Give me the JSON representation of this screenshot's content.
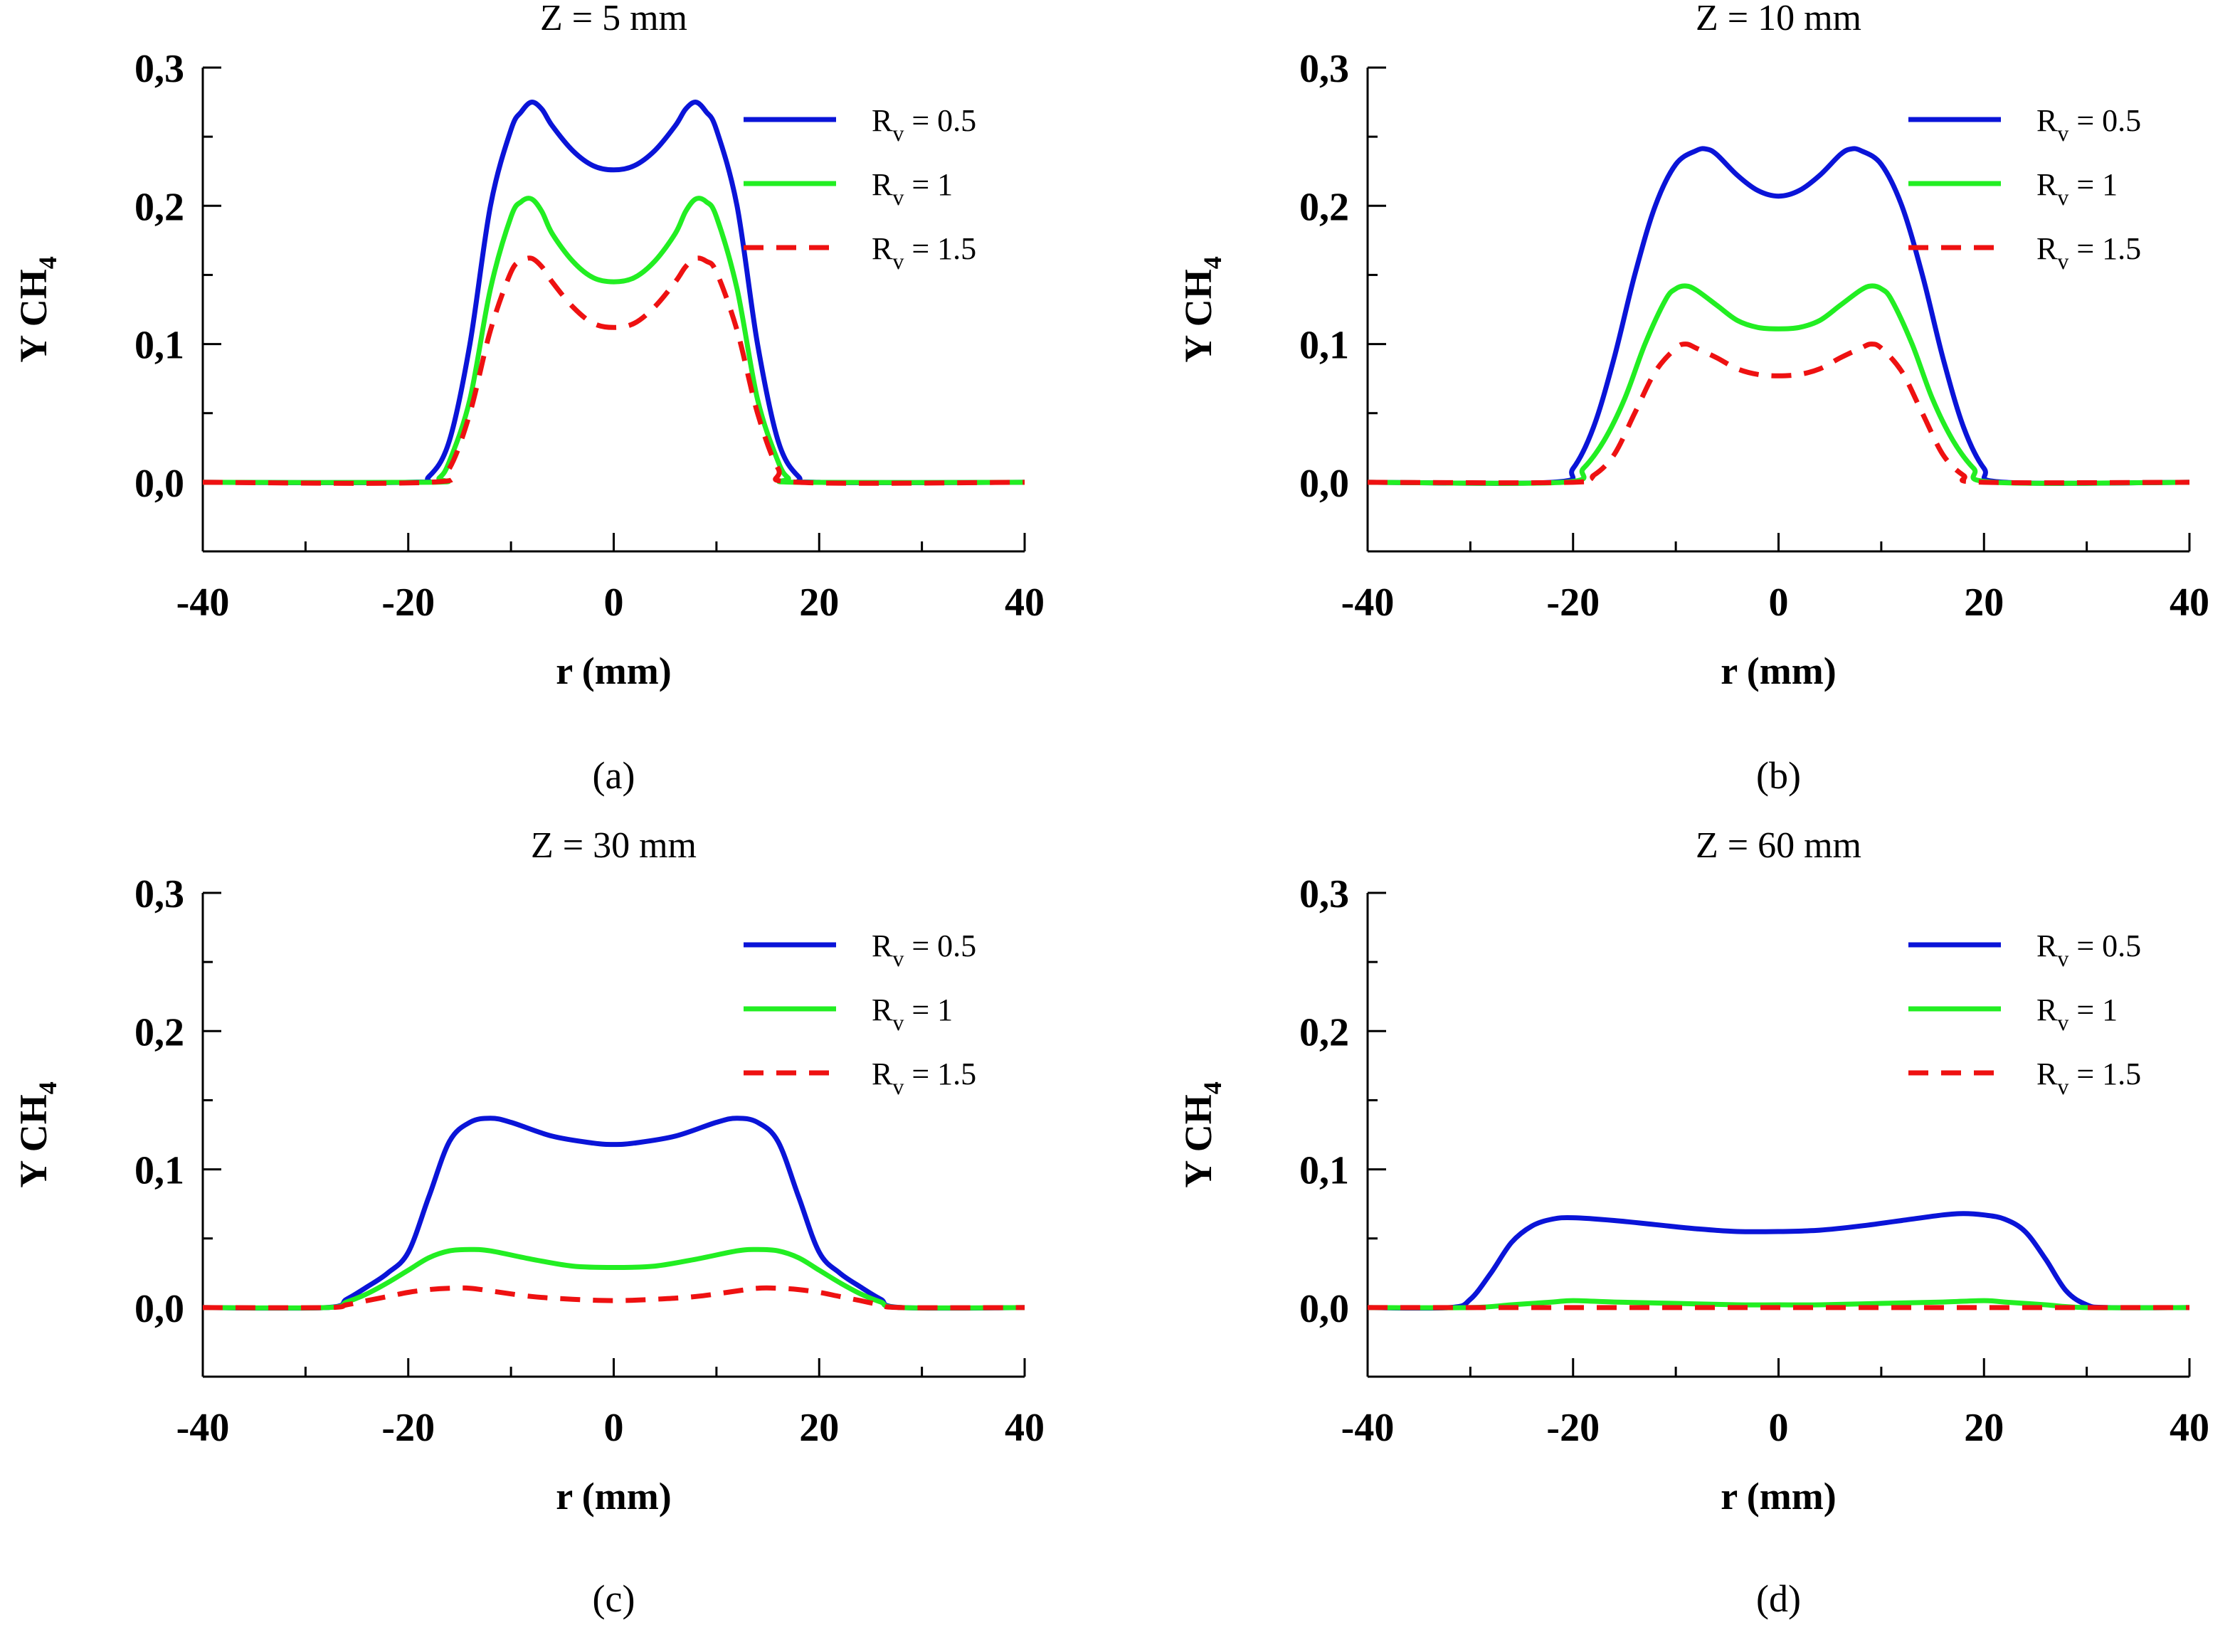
{
  "chart_data": [
    {
      "type": "line",
      "panel_label": "(a)",
      "title": "Z = 5 mm",
      "xlabel": "r (mm)",
      "ylabel": "Y CH",
      "ylabel_sub": "4",
      "xlim": [
        -40,
        40
      ],
      "ylim": [
        -0.05,
        0.3
      ],
      "xticks": [
        "-40",
        "-20",
        "0",
        "20",
        "40"
      ],
      "yticks": [
        "0,0",
        "0,1",
        "0,2",
        "0,3"
      ],
      "legend_position": "top-right",
      "series": [
        {
          "name": "Rv = 0.5",
          "name_main": "R",
          "name_sub": "v",
          "name_rest": " = 0.5",
          "color": "#0a14d8",
          "dash": "solid",
          "x": [
            -40,
            -20,
            -18,
            -16,
            -14,
            -12,
            -10,
            -9,
            -8,
            -7,
            -6,
            -4,
            -2,
            0,
            2,
            4,
            6,
            7,
            8,
            9,
            10,
            12,
            14,
            16,
            18,
            20,
            40
          ],
          "y": [
            0,
            0,
            0.004,
            0.03,
            0.1,
            0.2,
            0.255,
            0.268,
            0.275,
            0.27,
            0.258,
            0.24,
            0.229,
            0.226,
            0.229,
            0.24,
            0.258,
            0.27,
            0.275,
            0.268,
            0.255,
            0.2,
            0.1,
            0.03,
            0.004,
            0,
            0
          ]
        },
        {
          "name": "Rv = 1",
          "name_main": "R",
          "name_sub": "v",
          "name_rest": " = 1",
          "color": "#22ee22",
          "dash": "solid",
          "x": [
            -40,
            -18,
            -17,
            -16,
            -14,
            -12,
            -10,
            -9,
            -8,
            -7,
            -6,
            -4,
            -2,
            0,
            2,
            4,
            6,
            7,
            8,
            9,
            10,
            12,
            14,
            16,
            17,
            18,
            40
          ],
          "y": [
            0,
            0,
            0.003,
            0.015,
            0.06,
            0.14,
            0.192,
            0.203,
            0.205,
            0.196,
            0.18,
            0.16,
            0.148,
            0.145,
            0.148,
            0.16,
            0.18,
            0.196,
            0.205,
            0.203,
            0.192,
            0.14,
            0.06,
            0.015,
            0.003,
            0,
            0
          ]
        },
        {
          "name": "Rv = 1.5",
          "name_main": "R",
          "name_sub": "v",
          "name_rest": " = 1.5",
          "color": "#ee1111",
          "dash": "dashed",
          "x": [
            -40,
            -18,
            -16,
            -14,
            -12,
            -10,
            -9,
            -8,
            -7,
            -6,
            -4,
            -2,
            0,
            2,
            4,
            6,
            7,
            8,
            9,
            10,
            12,
            14,
            16,
            18,
            40
          ],
          "y": [
            0,
            0,
            0.01,
            0.05,
            0.11,
            0.152,
            0.16,
            0.162,
            0.156,
            0.145,
            0.127,
            0.115,
            0.112,
            0.115,
            0.127,
            0.145,
            0.156,
            0.162,
            0.16,
            0.152,
            0.11,
            0.05,
            0.01,
            0,
            0
          ]
        }
      ]
    },
    {
      "type": "line",
      "panel_label": "(b)",
      "title": "Z = 10 mm",
      "xlabel": "r (mm)",
      "ylabel": "Y CH",
      "ylabel_sub": "4",
      "xlim": [
        -40,
        40
      ],
      "ylim": [
        -0.05,
        0.3
      ],
      "xticks": [
        "-40",
        "-20",
        "0",
        "20",
        "40"
      ],
      "yticks": [
        "0,0",
        "0,1",
        "0,2",
        "0,3"
      ],
      "legend_position": "top-right",
      "series": [
        {
          "name": "Rv = 0.5",
          "name_main": "R",
          "name_sub": "v",
          "name_rest": " = 0.5",
          "color": "#0a14d8",
          "dash": "solid",
          "x": [
            -40,
            -22,
            -20,
            -18,
            -16,
            -14,
            -12,
            -10,
            -8,
            -7,
            -6,
            -4,
            -2,
            0,
            2,
            4,
            6,
            7,
            8,
            10,
            12,
            14,
            16,
            18,
            20,
            22,
            40
          ],
          "y": [
            0,
            0,
            0.01,
            0.04,
            0.09,
            0.15,
            0.2,
            0.23,
            0.24,
            0.241,
            0.237,
            0.222,
            0.211,
            0.207,
            0.211,
            0.222,
            0.237,
            0.241,
            0.24,
            0.23,
            0.2,
            0.15,
            0.09,
            0.04,
            0.01,
            0,
            0
          ]
        },
        {
          "name": "Rv = 1",
          "name_main": "R",
          "name_sub": "v",
          "name_rest": " = 1",
          "color": "#22ee22",
          "dash": "solid",
          "x": [
            -40,
            -21,
            -19,
            -17,
            -15,
            -13,
            -11,
            -10,
            -9,
            -8,
            -6,
            -4,
            -2,
            0,
            2,
            4,
            6,
            8,
            9,
            10,
            11,
            13,
            15,
            17,
            19,
            21,
            40
          ],
          "y": [
            0,
            0,
            0.01,
            0.03,
            0.06,
            0.1,
            0.132,
            0.14,
            0.142,
            0.139,
            0.128,
            0.117,
            0.112,
            0.111,
            0.112,
            0.117,
            0.128,
            0.139,
            0.142,
            0.14,
            0.132,
            0.1,
            0.06,
            0.03,
            0.01,
            0,
            0
          ]
        },
        {
          "name": "Rv = 1.5",
          "name_main": "R",
          "name_sub": "v",
          "name_rest": " = 1.5",
          "color": "#ee1111",
          "dash": "dashed",
          "x": [
            -40,
            -20,
            -18,
            -16,
            -14,
            -12,
            -10,
            -9,
            -8,
            -6,
            -4,
            -2,
            0,
            2,
            4,
            6,
            8,
            9,
            10,
            12,
            14,
            16,
            18,
            20,
            40
          ],
          "y": [
            0,
            0,
            0.005,
            0.02,
            0.05,
            0.08,
            0.097,
            0.1,
            0.097,
            0.09,
            0.082,
            0.078,
            0.077,
            0.078,
            0.082,
            0.09,
            0.097,
            0.1,
            0.097,
            0.08,
            0.05,
            0.02,
            0.005,
            0,
            0
          ]
        }
      ]
    },
    {
      "type": "line",
      "panel_label": "(c)",
      "title": "Z = 30 mm",
      "xlabel": "r (mm)",
      "ylabel": "Y CH",
      "ylabel_sub": "4",
      "xlim": [
        -40,
        40
      ],
      "ylim": [
        -0.05,
        0.3
      ],
      "xticks": [
        "-40",
        "-20",
        "0",
        "20",
        "40"
      ],
      "yticks": [
        "0,0",
        "0,1",
        "0,2",
        "0,3"
      ],
      "legend_position": "top-right",
      "series": [
        {
          "name": "Rv = 0.5",
          "name_main": "R",
          "name_sub": "v",
          "name_rest": " = 0.5",
          "color": "#0a14d8",
          "dash": "solid",
          "x": [
            -40,
            -28,
            -26,
            -24,
            -22,
            -20,
            -18,
            -16,
            -14,
            -12,
            -10,
            -6,
            -2,
            0,
            2,
            6,
            10,
            12,
            14,
            16,
            18,
            20,
            22,
            24,
            26,
            28,
            40
          ],
          "y": [
            0,
            0,
            0.006,
            0.015,
            0.025,
            0.04,
            0.08,
            0.12,
            0.134,
            0.137,
            0.134,
            0.124,
            0.119,
            0.118,
            0.119,
            0.124,
            0.134,
            0.137,
            0.134,
            0.12,
            0.08,
            0.04,
            0.025,
            0.015,
            0.006,
            0,
            0
          ]
        },
        {
          "name": "Rv = 1",
          "name_main": "R",
          "name_sub": "v",
          "name_rest": " = 1",
          "color": "#22ee22",
          "dash": "solid",
          "x": [
            -40,
            -28,
            -26,
            -24,
            -22,
            -20,
            -18,
            -16,
            -14,
            -12,
            -8,
            -4,
            0,
            4,
            8,
            12,
            14,
            16,
            18,
            20,
            22,
            24,
            26,
            28,
            40
          ],
          "y": [
            0,
            0,
            0.004,
            0.01,
            0.018,
            0.027,
            0.036,
            0.041,
            0.042,
            0.041,
            0.035,
            0.03,
            0.029,
            0.03,
            0.035,
            0.041,
            0.042,
            0.041,
            0.036,
            0.027,
            0.018,
            0.01,
            0.004,
            0,
            0
          ]
        },
        {
          "name": "Rv = 1.5",
          "name_main": "R",
          "name_sub": "v",
          "name_rest": " = 1.5",
          "color": "#ee1111",
          "dash": "dashed",
          "x": [
            -40,
            -28,
            -26,
            -24,
            -22,
            -20,
            -18,
            -16,
            -14,
            -12,
            -8,
            -4,
            0,
            4,
            8,
            12,
            14,
            16,
            18,
            20,
            22,
            24,
            26,
            28,
            40
          ],
          "y": [
            0,
            0,
            0.002,
            0.005,
            0.008,
            0.011,
            0.013,
            0.014,
            0.014,
            0.012,
            0.008,
            0.006,
            0.005,
            0.006,
            0.008,
            0.012,
            0.014,
            0.014,
            0.013,
            0.011,
            0.008,
            0.005,
            0.002,
            0,
            0
          ]
        }
      ]
    },
    {
      "type": "line",
      "panel_label": "(d)",
      "title": "Z = 60 mm",
      "xlabel": "r (mm)",
      "ylabel": "Y CH",
      "ylabel_sub": "4",
      "xlim": [
        -40,
        40
      ],
      "ylim": [
        -0.05,
        0.3
      ],
      "xticks": [
        "-40",
        "-20",
        "0",
        "20",
        "40"
      ],
      "yticks": [
        "0,0",
        "0,1",
        "0,2",
        "0,3"
      ],
      "legend_position": "top-right",
      "series": [
        {
          "name": "Rv = 0.5",
          "name_main": "R",
          "name_sub": "v",
          "name_rest": " = 0.5",
          "color": "#0a14d8",
          "dash": "solid",
          "x": [
            -40,
            -32,
            -30,
            -28,
            -26,
            -24,
            -22,
            -20,
            -16,
            -12,
            -8,
            -4,
            0,
            4,
            8,
            12,
            16,
            18,
            20,
            22,
            24,
            26,
            28,
            30,
            32,
            40
          ],
          "y": [
            0,
            0,
            0.006,
            0.025,
            0.047,
            0.059,
            0.064,
            0.065,
            0.063,
            0.06,
            0.057,
            0.055,
            0.055,
            0.056,
            0.059,
            0.063,
            0.067,
            0.068,
            0.067,
            0.064,
            0.055,
            0.035,
            0.012,
            0.002,
            0,
            0
          ]
        },
        {
          "name": "Rv = 1",
          "name_main": "R",
          "name_sub": "v",
          "name_rest": " = 1",
          "color": "#22ee22",
          "dash": "solid",
          "x": [
            -40,
            -30,
            -26,
            -22,
            -20,
            -16,
            -10,
            -4,
            0,
            4,
            10,
            16,
            20,
            22,
            26,
            30,
            40
          ],
          "y": [
            0,
            0,
            0.002,
            0.004,
            0.005,
            0.004,
            0.003,
            0.002,
            0.002,
            0.002,
            0.003,
            0.004,
            0.005,
            0.004,
            0.002,
            0,
            0
          ]
        },
        {
          "name": "Rv = 1.5",
          "name_main": "R",
          "name_sub": "v",
          "name_rest": " = 1.5",
          "color": "#ee1111",
          "dash": "dashed",
          "x": [
            -40,
            -20,
            0,
            20,
            40
          ],
          "y": [
            0,
            0,
            0,
            0,
            0
          ]
        }
      ]
    }
  ]
}
